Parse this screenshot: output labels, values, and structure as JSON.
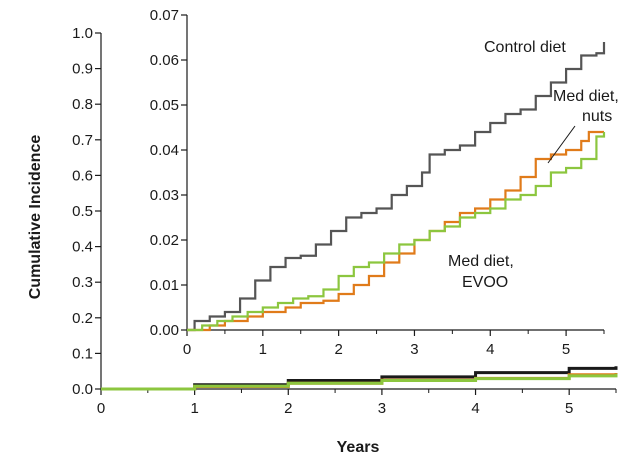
{
  "chart_data": [
    {
      "type": "line",
      "name": "main",
      "xlabel": "Years",
      "ylabel": "Cumulative Incidence",
      "xlim": [
        0,
        5.5
      ],
      "ylim": [
        0,
        1.0
      ],
      "x_ticks": [
        "0",
        "1",
        "2",
        "3",
        "4",
        "5"
      ],
      "y_ticks": [
        "0.0",
        "0.1",
        "0.2",
        "0.3",
        "0.4",
        "0.5",
        "0.6",
        "0.7",
        "0.8",
        "0.9",
        "1.0"
      ],
      "grid": false,
      "series": [
        {
          "name": "Control diet",
          "color": "#1a1a1a",
          "points": [
            [
              0,
              0
            ],
            [
              1,
              0.012
            ],
            [
              2,
              0.024
            ],
            [
              3,
              0.034
            ],
            [
              4,
              0.046
            ],
            [
              5,
              0.058
            ],
            [
              5.5,
              0.064
            ]
          ]
        },
        {
          "name": "Med diet, nuts",
          "color": "#e07b1a",
          "points": [
            [
              0,
              0
            ],
            [
              1,
              0.007
            ],
            [
              2,
              0.016
            ],
            [
              3,
              0.025
            ],
            [
              4,
              0.03
            ],
            [
              5,
              0.04
            ],
            [
              5.5,
              0.045
            ]
          ]
        },
        {
          "name": "Med diet, EVOO",
          "color": "#8cc63f",
          "points": [
            [
              0,
              0
            ],
            [
              1,
              0.008
            ],
            [
              2,
              0.016
            ],
            [
              3,
              0.024
            ],
            [
              4,
              0.029
            ],
            [
              5,
              0.037
            ],
            [
              5.5,
              0.043
            ]
          ]
        }
      ]
    },
    {
      "type": "line",
      "name": "inset",
      "xlim": [
        0,
        5.5
      ],
      "ylim": [
        0,
        0.07
      ],
      "x_ticks": [
        "0",
        "1",
        "2",
        "3",
        "4",
        "5"
      ],
      "y_ticks": [
        "0.00",
        "0.01",
        "0.02",
        "0.03",
        "0.04",
        "0.05",
        "0.06",
        "0.07"
      ],
      "grid": false,
      "annotations": [
        "Control diet",
        "Med diet,",
        "nuts",
        "Med diet,",
        "EVOO"
      ],
      "series": [
        {
          "name": "Control diet",
          "color": "#555555",
          "points": [
            [
              0,
              0
            ],
            [
              0.1,
              0.002
            ],
            [
              0.3,
              0.003
            ],
            [
              0.5,
              0.004
            ],
            [
              0.7,
              0.007
            ],
            [
              0.9,
              0.011
            ],
            [
              1.1,
              0.014
            ],
            [
              1.3,
              0.016
            ],
            [
              1.5,
              0.0165
            ],
            [
              1.7,
              0.019
            ],
            [
              1.9,
              0.022
            ],
            [
              2.1,
              0.025
            ],
            [
              2.3,
              0.026
            ],
            [
              2.5,
              0.027
            ],
            [
              2.7,
              0.03
            ],
            [
              2.9,
              0.032
            ],
            [
              3.1,
              0.035
            ],
            [
              3.2,
              0.039
            ],
            [
              3.4,
              0.04
            ],
            [
              3.6,
              0.041
            ],
            [
              3.8,
              0.044
            ],
            [
              4.0,
              0.046
            ],
            [
              4.2,
              0.048
            ],
            [
              4.4,
              0.049
            ],
            [
              4.6,
              0.052
            ],
            [
              4.8,
              0.055
            ],
            [
              5.0,
              0.058
            ],
            [
              5.2,
              0.061
            ],
            [
              5.4,
              0.0615
            ],
            [
              5.5,
              0.064
            ]
          ]
        },
        {
          "name": "Med diet, nuts",
          "color": "#e07b1a",
          "points": [
            [
              0,
              0
            ],
            [
              0.3,
              0.001
            ],
            [
              0.5,
              0.002
            ],
            [
              0.8,
              0.003
            ],
            [
              1.0,
              0.004
            ],
            [
              1.3,
              0.005
            ],
            [
              1.5,
              0.006
            ],
            [
              1.8,
              0.0065
            ],
            [
              2.0,
              0.008
            ],
            [
              2.2,
              0.01
            ],
            [
              2.4,
              0.012
            ],
            [
              2.6,
              0.015
            ],
            [
              2.8,
              0.017
            ],
            [
              3.0,
              0.02
            ],
            [
              3.2,
              0.022
            ],
            [
              3.4,
              0.024
            ],
            [
              3.6,
              0.026
            ],
            [
              3.8,
              0.027
            ],
            [
              4.0,
              0.029
            ],
            [
              4.2,
              0.031
            ],
            [
              4.4,
              0.034
            ],
            [
              4.6,
              0.038
            ],
            [
              4.8,
              0.039
            ],
            [
              5.0,
              0.04
            ],
            [
              5.2,
              0.042
            ],
            [
              5.3,
              0.044
            ],
            [
              5.5,
              0.044
            ]
          ]
        },
        {
          "name": "Med diet, EVOO",
          "color": "#8cc63f",
          "points": [
            [
              0,
              0
            ],
            [
              0.2,
              0.001
            ],
            [
              0.4,
              0.002
            ],
            [
              0.6,
              0.003
            ],
            [
              0.8,
              0.004
            ],
            [
              1.0,
              0.005
            ],
            [
              1.2,
              0.006
            ],
            [
              1.4,
              0.007
            ],
            [
              1.6,
              0.0075
            ],
            [
              1.8,
              0.009
            ],
            [
              2.0,
              0.012
            ],
            [
              2.2,
              0.014
            ],
            [
              2.4,
              0.015
            ],
            [
              2.6,
              0.017
            ],
            [
              2.8,
              0.019
            ],
            [
              3.0,
              0.02
            ],
            [
              3.2,
              0.022
            ],
            [
              3.4,
              0.023
            ],
            [
              3.6,
              0.025
            ],
            [
              3.8,
              0.026
            ],
            [
              4.0,
              0.027
            ],
            [
              4.2,
              0.029
            ],
            [
              4.4,
              0.03
            ],
            [
              4.6,
              0.032
            ],
            [
              4.8,
              0.035
            ],
            [
              5.0,
              0.036
            ],
            [
              5.2,
              0.038
            ],
            [
              5.4,
              0.043
            ],
            [
              5.5,
              0.044
            ]
          ]
        }
      ]
    }
  ]
}
